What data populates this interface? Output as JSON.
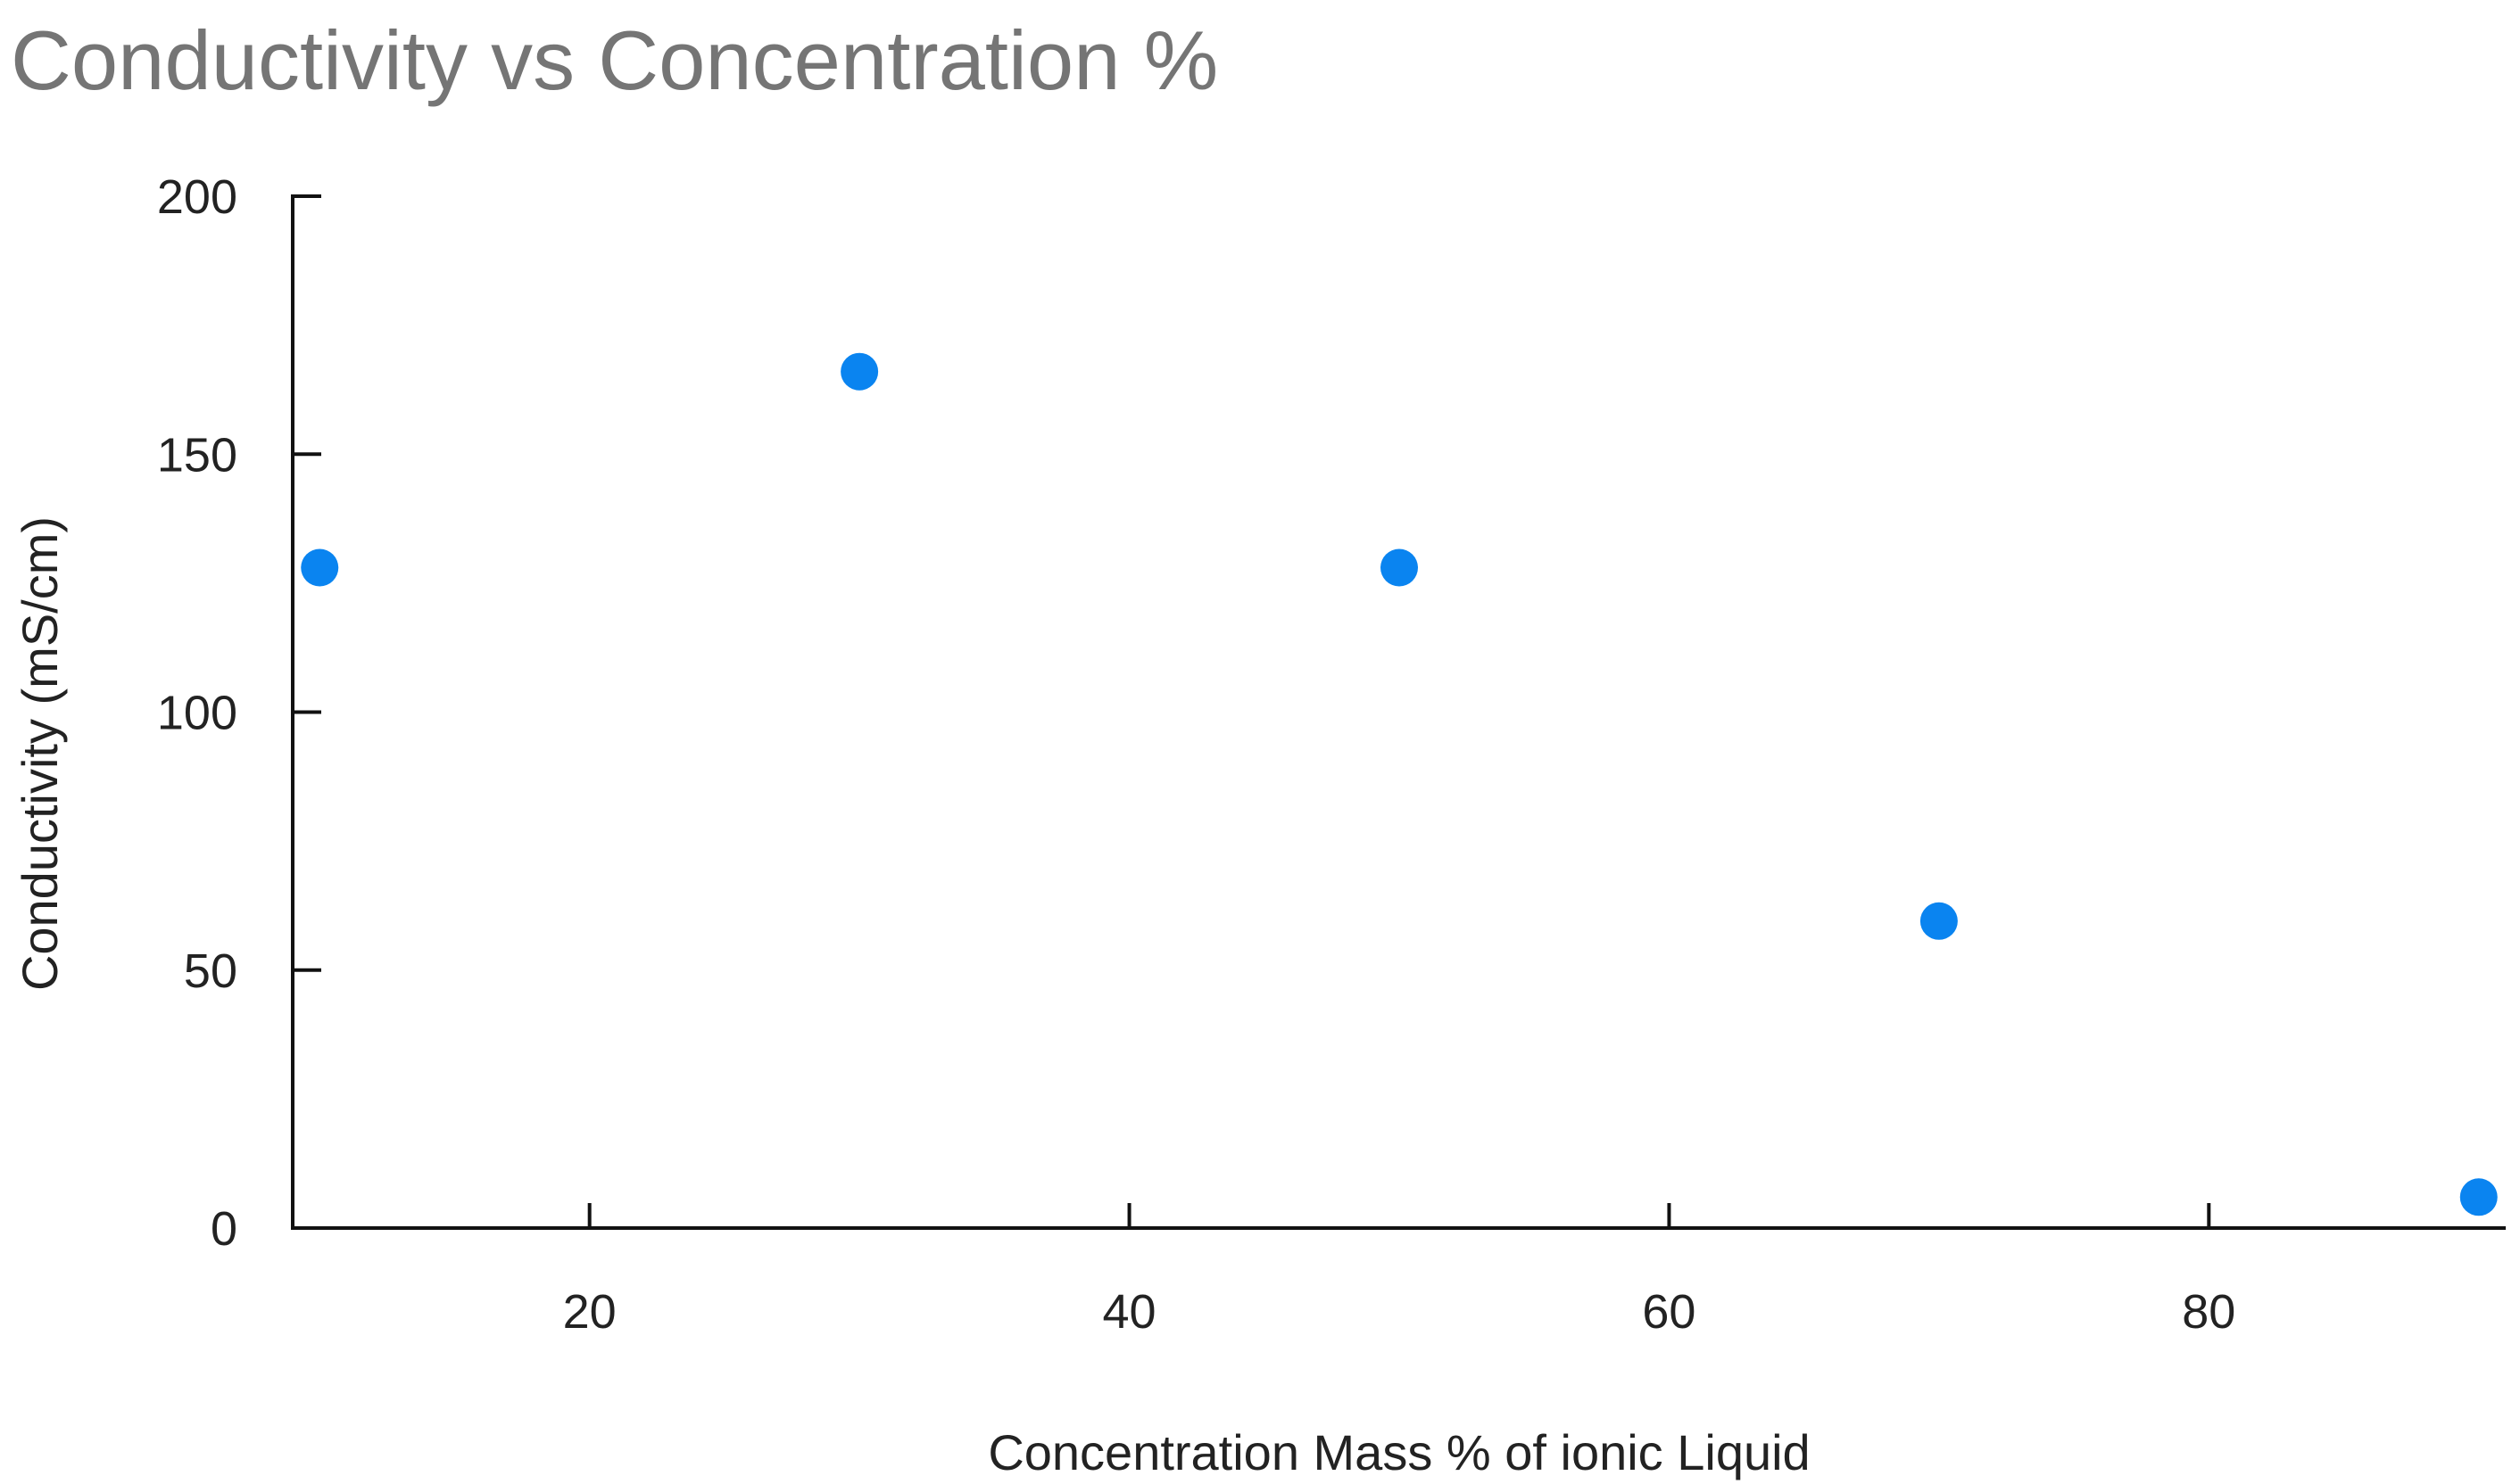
{
  "chart_data": {
    "type": "scatter",
    "title": "Conductivity vs Concentration %",
    "xlabel": "Concentration Mass % of ionic Liquid",
    "ylabel": "Conductivity (mS/cm)",
    "xlim": [
      9,
      91
    ],
    "ylim": [
      0,
      200
    ],
    "x_ticks": [
      20,
      40,
      60,
      80
    ],
    "y_ticks": [
      0,
      50,
      100,
      150,
      200
    ],
    "grid": false,
    "legend": "none",
    "point_color": "#0a84f0",
    "series": [
      {
        "x": [
          10,
          30,
          50,
          70,
          90
        ],
        "y": [
          128,
          166,
          128,
          59.5,
          6
        ]
      }
    ]
  }
}
